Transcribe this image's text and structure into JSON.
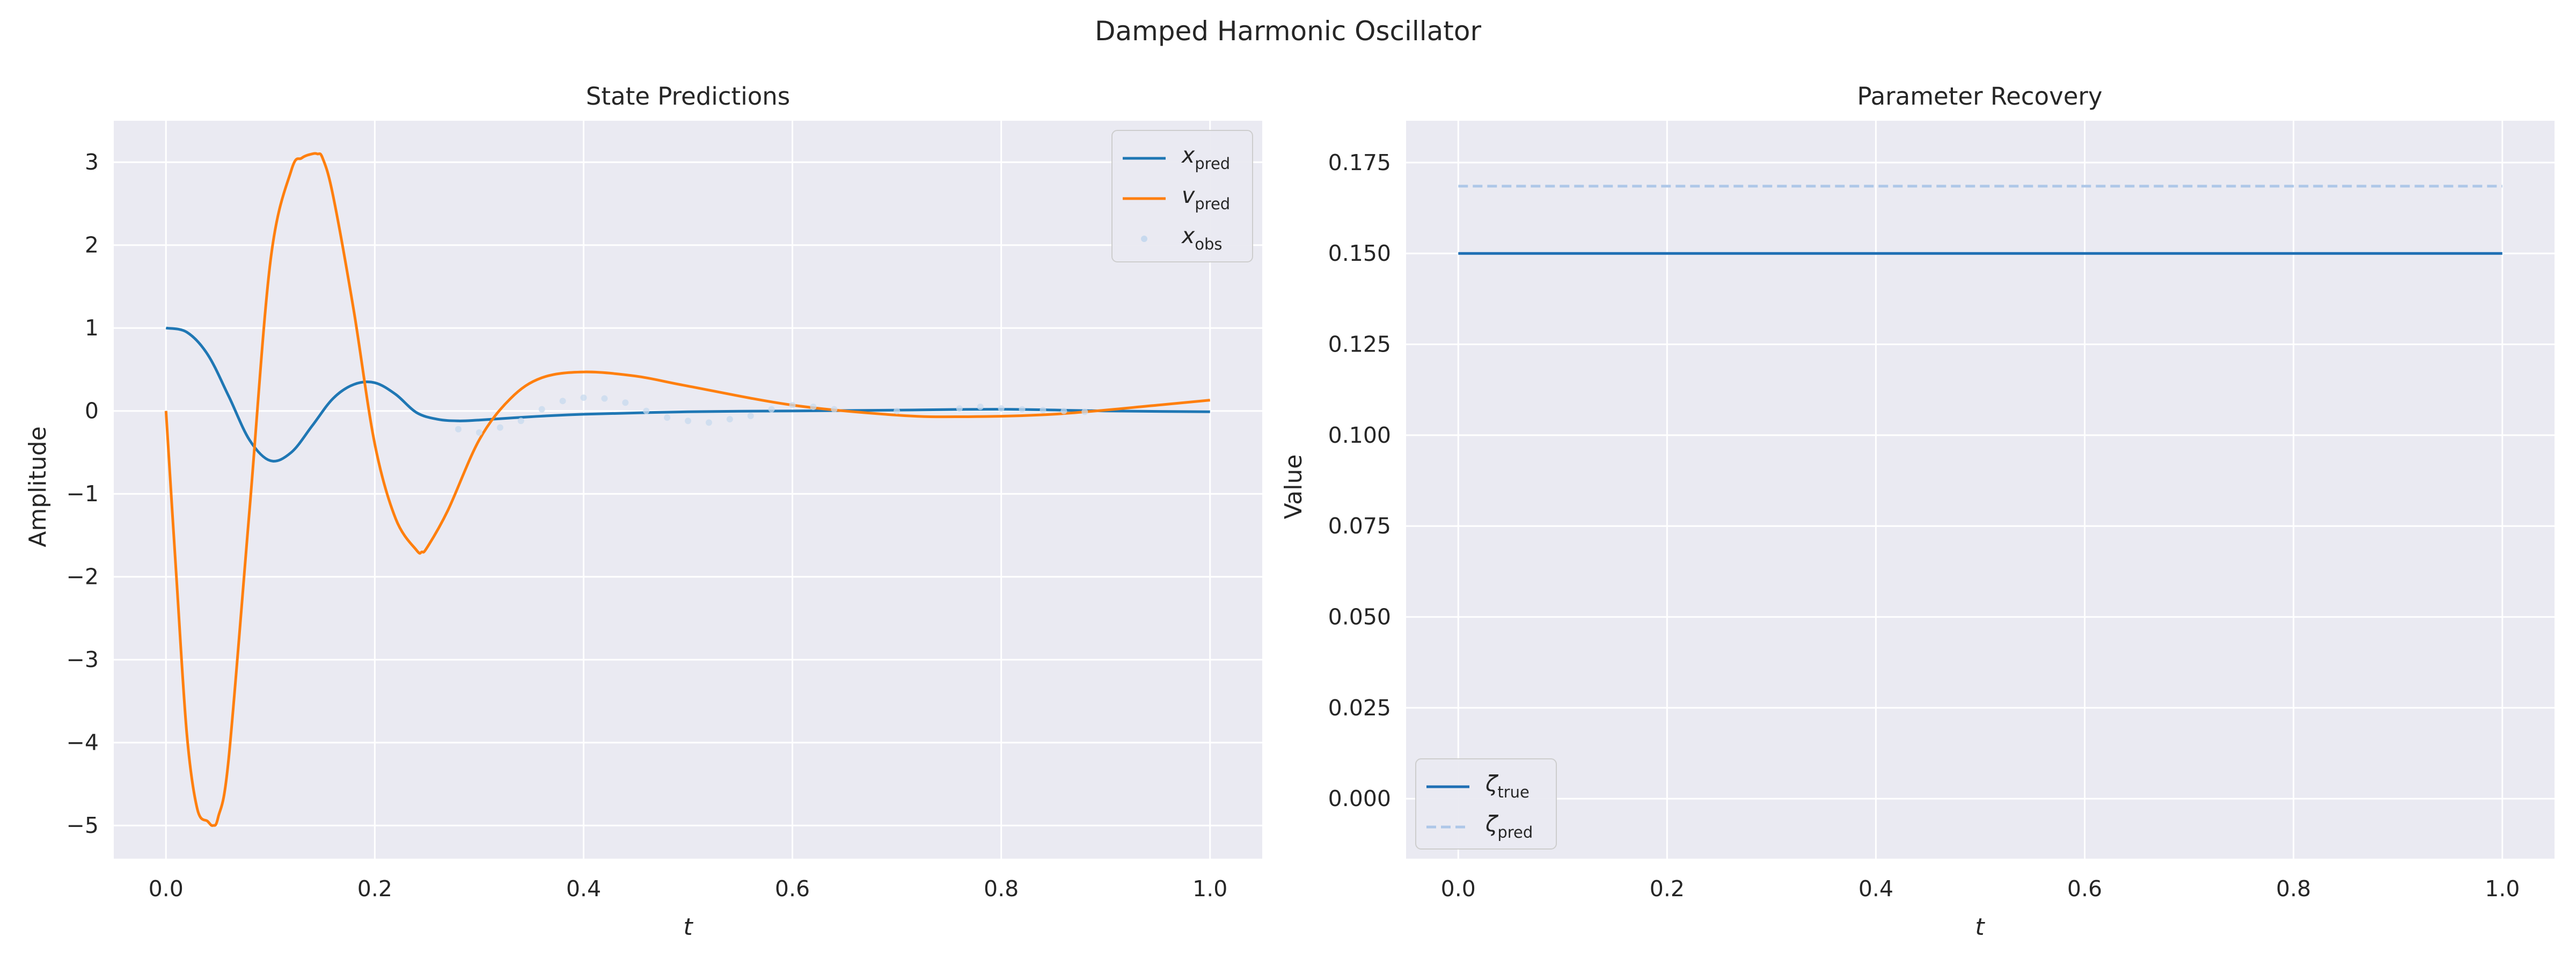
{
  "figure": {
    "title": "Damped Harmonic Oscillator"
  },
  "colors": {
    "background": "#eaeaf2",
    "grid": "#ffffff",
    "x_pred": "#1f77b4",
    "v_pred": "#ff7f0e",
    "x_obs": "#c7d9ee",
    "zeta_true": "#1f6fb4",
    "zeta_pred": "#aec7e8"
  },
  "chart_data": [
    {
      "type": "line",
      "title": "State Predictions",
      "xlabel": "t",
      "ylabel": "Amplitude",
      "xlim": [
        -0.05,
        1.05
      ],
      "ylim": [
        -5.4,
        3.5
      ],
      "xticks": [
        "0.0",
        "0.2",
        "0.4",
        "0.6",
        "0.8",
        "1.0"
      ],
      "yticks": [
        "−5",
        "−4",
        "−3",
        "−2",
        "−1",
        "0",
        "1",
        "2",
        "3"
      ],
      "grid": true,
      "legend_position": "upper right",
      "series": [
        {
          "name": "x",
          "sub": "pred",
          "style": "solid",
          "x": [
            0,
            0.02,
            0.04,
            0.06,
            0.08,
            0.1,
            0.12,
            0.14,
            0.16,
            0.18,
            0.2,
            0.22,
            0.24,
            0.26,
            0.28,
            0.3,
            0.35,
            0.4,
            0.5,
            0.6,
            0.7,
            0.8,
            0.9,
            1.0
          ],
          "y": [
            1.0,
            0.95,
            0.68,
            0.18,
            -0.35,
            -0.6,
            -0.5,
            -0.18,
            0.15,
            0.32,
            0.34,
            0.2,
            -0.02,
            -0.1,
            -0.12,
            -0.11,
            -0.07,
            -0.04,
            -0.01,
            0.0,
            0.01,
            0.02,
            0.0,
            -0.01
          ]
        },
        {
          "name": "v",
          "sub": "pred",
          "style": "solid",
          "x": [
            0,
            0.01,
            0.02,
            0.03,
            0.04,
            0.045,
            0.05,
            0.06,
            0.08,
            0.1,
            0.12,
            0.13,
            0.14,
            0.145,
            0.15,
            0.16,
            0.18,
            0.2,
            0.22,
            0.24,
            0.245,
            0.25,
            0.27,
            0.3,
            0.33,
            0.36,
            0.4,
            0.45,
            0.5,
            0.6,
            0.7,
            0.76,
            0.85,
            0.95,
            1.0
          ],
          "y": [
            0.0,
            -2.0,
            -3.9,
            -4.8,
            -4.95,
            -5.0,
            -4.9,
            -4.2,
            -1.2,
            1.8,
            2.9,
            3.05,
            3.1,
            3.1,
            3.05,
            2.6,
            1.2,
            -0.4,
            -1.3,
            -1.68,
            -1.7,
            -1.65,
            -1.2,
            -0.35,
            0.15,
            0.4,
            0.47,
            0.42,
            0.3,
            0.07,
            -0.05,
            -0.07,
            -0.04,
            0.07,
            0.13
          ]
        },
        {
          "name": "x",
          "sub": "obs",
          "style": "scatter",
          "x": [
            0.28,
            0.3,
            0.32,
            0.34,
            0.36,
            0.38,
            0.4,
            0.42,
            0.44,
            0.46,
            0.48,
            0.5,
            0.52,
            0.54,
            0.56,
            0.58,
            0.6,
            0.62,
            0.64,
            0.7,
            0.76,
            0.78,
            0.8,
            0.82,
            0.84,
            0.86,
            0.88
          ],
          "y": [
            -0.22,
            -0.26,
            -0.2,
            -0.12,
            0.02,
            0.12,
            0.16,
            0.15,
            0.1,
            0.0,
            -0.08,
            -0.12,
            -0.14,
            -0.1,
            -0.06,
            0.02,
            0.07,
            0.05,
            0.02,
            0.0,
            0.03,
            0.05,
            0.03,
            0.02,
            0.01,
            0.0,
            -0.01
          ]
        }
      ]
    },
    {
      "type": "line",
      "title": "Parameter Recovery",
      "xlabel": "t",
      "ylabel": "Value",
      "xlim": [
        -0.05,
        1.05
      ],
      "ylim": [
        -0.0165,
        0.1865
      ],
      "xticks": [
        "0.0",
        "0.2",
        "0.4",
        "0.6",
        "0.8",
        "1.0"
      ],
      "yticks": [
        "0.000",
        "0.025",
        "0.050",
        "0.075",
        "0.100",
        "0.125",
        "0.150",
        "0.175"
      ],
      "grid": true,
      "legend_position": "lower left",
      "series": [
        {
          "name": "ζ",
          "sub": "true",
          "style": "solid",
          "x": [
            0,
            1.0
          ],
          "y": [
            0.15,
            0.15
          ]
        },
        {
          "name": "ζ",
          "sub": "pred",
          "style": "dashed",
          "x": [
            0,
            1.0
          ],
          "y": [
            0.1685,
            0.1685
          ]
        }
      ]
    }
  ]
}
